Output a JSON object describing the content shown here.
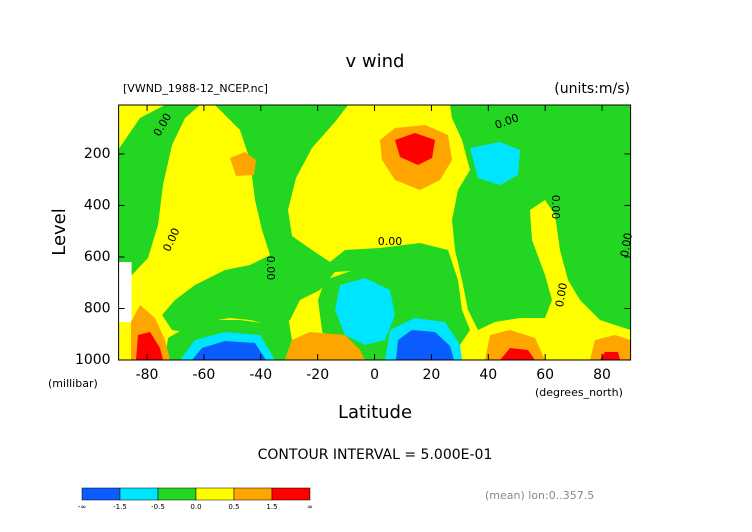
{
  "chart_data": {
    "type": "contour",
    "title": "v wind",
    "subtitle": "[VWND_1988-12_NCEP.nc]",
    "units": "(units:m/s)",
    "x_label": "Latitude",
    "x_units": "(degrees_north)",
    "y_label": "Level",
    "y_units": "(millibar)",
    "xlim": [
      -90,
      90
    ],
    "xticks": [
      -80,
      -60,
      -40,
      -20,
      0,
      20,
      40,
      60,
      80
    ],
    "ylim": [
      1000,
      10
    ],
    "yticks": [
      200,
      400,
      600,
      800,
      1000
    ],
    "contour_labels": [
      "0.00",
      "0.00",
      "0.00",
      "0.00",
      "0.00",
      "0.00",
      "0.00",
      "0.00"
    ],
    "contour_interval": "CONTOUR INTERVAL = 5.000E-01",
    "note": "(mean) lon:0..357.5",
    "colorbar_labels": [
      "-∞",
      "-1.5",
      "-0.5",
      "0.0",
      "0.5",
      "1.5",
      "∞"
    ],
    "colorbar_colors": [
      "#0a5cff",
      "#00e5ff",
      "#22d622",
      "#ffff00",
      "#ffa500",
      "#ff0000"
    ]
  }
}
